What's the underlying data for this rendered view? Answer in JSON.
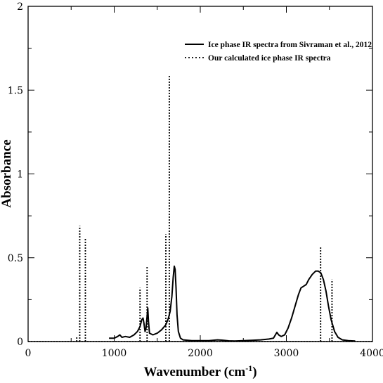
{
  "chart_data": {
    "type": "line",
    "xlabel_main": "Wavenumber (cm",
    "xlabel_sup": "-1",
    "xlabel_close": ")",
    "ylabel": "Absorbance",
    "xlim": [
      0,
      4000
    ],
    "ylim": [
      0,
      2
    ],
    "x_ticks": [
      0,
      1000,
      2000,
      3000,
      4000
    ],
    "x_tick_labels": [
      "0",
      "1000",
      "2000",
      "3000",
      "4000"
    ],
    "y_ticks": [
      0,
      0.5,
      1,
      1.5,
      2
    ],
    "y_tick_labels": [
      "0",
      "0.5",
      "1",
      "1.5",
      "2"
    ],
    "grid": false,
    "legend_position": "top-right",
    "series": [
      {
        "name": "Ice phase IR spectra from Sivraman et al., 2012",
        "style": "solid",
        "color": "#000000",
        "points": [
          [
            940,
            0.02
          ],
          [
            1000,
            0.02
          ],
          [
            1040,
            0.03
          ],
          [
            1065,
            0.04
          ],
          [
            1090,
            0.025
          ],
          [
            1130,
            0.03
          ],
          [
            1180,
            0.025
          ],
          [
            1230,
            0.04
          ],
          [
            1270,
            0.06
          ],
          [
            1300,
            0.09
          ],
          [
            1320,
            0.13
          ],
          [
            1335,
            0.14
          ],
          [
            1345,
            0.11
          ],
          [
            1358,
            0.06
          ],
          [
            1370,
            0.08
          ],
          [
            1382,
            0.15
          ],
          [
            1390,
            0.2
          ],
          [
            1398,
            0.12
          ],
          [
            1410,
            0.05
          ],
          [
            1450,
            0.04
          ],
          [
            1500,
            0.05
          ],
          [
            1550,
            0.07
          ],
          [
            1600,
            0.1
          ],
          [
            1630,
            0.14
          ],
          [
            1650,
            0.18
          ],
          [
            1670,
            0.27
          ],
          [
            1685,
            0.38
          ],
          [
            1698,
            0.45
          ],
          [
            1708,
            0.43
          ],
          [
            1718,
            0.32
          ],
          [
            1730,
            0.16
          ],
          [
            1745,
            0.06
          ],
          [
            1770,
            0.02
          ],
          [
            1800,
            0.01
          ],
          [
            1900,
            0.005
          ],
          [
            2000,
            0.005
          ],
          [
            2100,
            0.005
          ],
          [
            2200,
            0.01
          ],
          [
            2260,
            0.008
          ],
          [
            2330,
            0.004
          ],
          [
            2400,
            0.003
          ],
          [
            2500,
            0.005
          ],
          [
            2600,
            0.007
          ],
          [
            2700,
            0.01
          ],
          [
            2800,
            0.015
          ],
          [
            2850,
            0.02
          ],
          [
            2890,
            0.055
          ],
          [
            2910,
            0.04
          ],
          [
            2940,
            0.03
          ],
          [
            2980,
            0.04
          ],
          [
            3020,
            0.08
          ],
          [
            3060,
            0.14
          ],
          [
            3100,
            0.21
          ],
          [
            3140,
            0.28
          ],
          [
            3170,
            0.32
          ],
          [
            3200,
            0.33
          ],
          [
            3230,
            0.34
          ],
          [
            3260,
            0.37
          ],
          [
            3300,
            0.4
          ],
          [
            3340,
            0.42
          ],
          [
            3370,
            0.42
          ],
          [
            3400,
            0.41
          ],
          [
            3430,
            0.37
          ],
          [
            3460,
            0.3
          ],
          [
            3490,
            0.21
          ],
          [
            3520,
            0.13
          ],
          [
            3560,
            0.06
          ],
          [
            3600,
            0.025
          ],
          [
            3650,
            0.01
          ],
          [
            3720,
            0.005
          ],
          [
            3800,
            0.003
          ]
        ]
      },
      {
        "name": "Our calculated ice phase IR spectra",
        "style": "dotted",
        "color": "#000000",
        "peaks": [
          [
            565,
            0.03
          ],
          [
            600,
            0.69
          ],
          [
            665,
            0.62
          ],
          [
            1300,
            0.32
          ],
          [
            1382,
            0.45
          ],
          [
            1600,
            0.64
          ],
          [
            1640,
            1.59
          ],
          [
            3398,
            0.57
          ],
          [
            3530,
            0.37
          ]
        ]
      }
    ]
  }
}
